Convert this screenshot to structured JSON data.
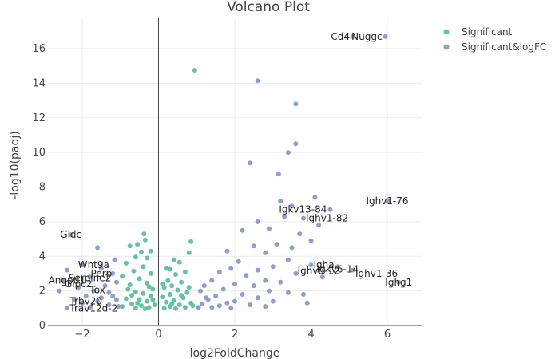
{
  "chart_data": {
    "type": "scatter",
    "title": "Volcano Plot",
    "xlabel": "log2FoldChange",
    "ylabel": "-log10(padj)",
    "xlim": [
      -2.9,
      6.9
    ],
    "ylim": [
      0,
      17.8
    ],
    "xticks": [
      -2,
      0,
      2,
      4,
      6
    ],
    "yticks": [
      0,
      2,
      4,
      6,
      8,
      10,
      12,
      14,
      16
    ],
    "grid": true,
    "legend_position": "top-right",
    "colors": {
      "Significant": "#66c2a5",
      "Significant&logFC": "#8da0cb"
    },
    "series": [
      {
        "name": "Significant",
        "color": "#66c2a5",
        "points": [
          [
            0.95,
            14.75
          ],
          [
            -0.38,
            5.3
          ],
          [
            -0.35,
            4.95
          ],
          [
            -0.55,
            4.7
          ],
          [
            0.85,
            4.85
          ],
          [
            -0.75,
            4.6
          ],
          [
            -0.45,
            4.25
          ],
          [
            -0.2,
            4.3
          ],
          [
            0.8,
            4.2
          ],
          [
            -0.6,
            3.95
          ],
          [
            0.4,
            3.8
          ],
          [
            -0.3,
            3.9
          ],
          [
            0.55,
            3.65
          ],
          [
            -0.85,
            3.6
          ],
          [
            -0.4,
            3.4
          ],
          [
            0.3,
            3.25
          ],
          [
            0.7,
            3.1
          ],
          [
            -0.65,
            3.15
          ],
          [
            -0.2,
            3.0
          ],
          [
            0.45,
            2.95
          ],
          [
            -0.95,
            2.85
          ],
          [
            0.25,
            2.6
          ],
          [
            -0.5,
            2.7
          ],
          [
            0.6,
            2.5
          ],
          [
            -0.3,
            2.45
          ],
          [
            0.35,
            2.3
          ],
          [
            -0.75,
            2.35
          ],
          [
            0.15,
            2.2
          ],
          [
            -0.15,
            2.1
          ],
          [
            0.5,
            2.05
          ],
          [
            -0.6,
            1.95
          ],
          [
            0.75,
            1.9
          ],
          [
            -0.4,
            1.85
          ],
          [
            0.3,
            1.8
          ],
          [
            -0.2,
            1.7
          ],
          [
            0.1,
            1.65
          ],
          [
            0.65,
            1.6
          ],
          [
            -0.85,
            1.55
          ],
          [
            -0.5,
            1.5
          ],
          [
            0.4,
            1.45
          ],
          [
            -0.3,
            1.4
          ],
          [
            0.2,
            1.35
          ],
          [
            0.85,
            1.3
          ],
          [
            -0.7,
            1.25
          ],
          [
            -0.1,
            1.2
          ],
          [
            0.55,
            1.2
          ],
          [
            -0.45,
            1.15
          ],
          [
            0.3,
            1.1
          ],
          [
            -0.95,
            1.1
          ],
          [
            0.7,
            1.05
          ],
          [
            -0.25,
            1.05
          ],
          [
            0.15,
            1.0
          ],
          [
            -0.6,
            1.0
          ],
          [
            0.45,
            0.98
          ],
          [
            -0.35,
            0.97
          ],
          [
            0.9,
            1.15
          ],
          [
            -0.15,
            1.5
          ],
          [
            0.1,
            2.4
          ],
          [
            -0.8,
            2.1
          ],
          [
            0.8,
            2.2
          ],
          [
            -0.55,
            1.3
          ],
          [
            0.6,
            1.75
          ],
          [
            -0.25,
            2.25
          ],
          [
            0.35,
            1.25
          ],
          [
            -0.7,
            1.75
          ],
          [
            0.2,
            3.3
          ]
        ]
      },
      {
        "name": "Significant&logFC",
        "color": "#8da0cb",
        "points": [
          [
            5.1,
            16.7
          ],
          [
            5.95,
            16.7
          ],
          [
            2.6,
            14.15
          ],
          [
            3.6,
            12.8
          ],
          [
            3.6,
            10.5
          ],
          [
            3.4,
            10.0
          ],
          [
            2.4,
            9.4
          ],
          [
            3.15,
            8.75
          ],
          [
            4.1,
            7.4
          ],
          [
            6.0,
            7.2
          ],
          [
            3.2,
            7.2
          ],
          [
            3.5,
            6.9
          ],
          [
            4.5,
            6.7
          ],
          [
            3.8,
            6.2
          ],
          [
            2.6,
            6.0
          ],
          [
            3.3,
            6.3
          ],
          [
            4.2,
            5.8
          ],
          [
            2.9,
            5.6
          ],
          [
            3.7,
            5.3
          ],
          [
            2.2,
            5.5
          ],
          [
            4.0,
            4.9
          ],
          [
            3.1,
            4.7
          ],
          [
            2.5,
            4.6
          ],
          [
            3.5,
            4.5
          ],
          [
            1.8,
            4.3
          ],
          [
            2.8,
            4.2
          ],
          [
            4.0,
            3.5
          ],
          [
            4.7,
            3.4
          ],
          [
            5.1,
            3.2
          ],
          [
            3.4,
            3.8
          ],
          [
            2.1,
            3.7
          ],
          [
            3.0,
            3.4
          ],
          [
            2.6,
            3.2
          ],
          [
            1.9,
            3.3
          ],
          [
            3.6,
            3.0
          ],
          [
            2.3,
            2.9
          ],
          [
            1.6,
            3.1
          ],
          [
            4.3,
            2.8
          ],
          [
            6.3,
            2.5
          ],
          [
            2.8,
            2.6
          ],
          [
            3.2,
            2.5
          ],
          [
            1.4,
            2.6
          ],
          [
            2.0,
            2.4
          ],
          [
            2.5,
            2.3
          ],
          [
            1.2,
            2.3
          ],
          [
            3.8,
            1.8
          ],
          [
            1.7,
            2.1
          ],
          [
            2.9,
            2.0
          ],
          [
            3.4,
            1.9
          ],
          [
            1.1,
            2.0
          ],
          [
            2.2,
            1.8
          ],
          [
            1.5,
            1.7
          ],
          [
            2.6,
            1.6
          ],
          [
            3.9,
            1.3
          ],
          [
            1.3,
            1.5
          ],
          [
            2.0,
            1.4
          ],
          [
            1.8,
            1.3
          ],
          [
            1.15,
            1.25
          ],
          [
            1.6,
            1.15
          ],
          [
            2.4,
            1.2
          ],
          [
            3.0,
            1.4
          ],
          [
            1.05,
            1.05
          ],
          [
            1.4,
            1.05
          ],
          [
            2.8,
            1.1
          ],
          [
            1.9,
            1.0
          ],
          [
            1.25,
            1.6
          ],
          [
            -2.3,
            5.25
          ],
          [
            -1.6,
            4.5
          ],
          [
            -1.15,
            3.8
          ],
          [
            -2.0,
            3.5
          ],
          [
            -1.5,
            3.3
          ],
          [
            -2.4,
            3.2
          ],
          [
            -1.2,
            3.0
          ],
          [
            -1.8,
            2.8
          ],
          [
            -2.5,
            2.6
          ],
          [
            -1.1,
            2.5
          ],
          [
            -1.4,
            2.3
          ],
          [
            -2.1,
            2.2
          ],
          [
            -1.7,
            2.0
          ],
          [
            -2.6,
            2.0
          ],
          [
            -1.3,
            1.9
          ],
          [
            -1.9,
            1.7
          ],
          [
            -1.5,
            1.6
          ],
          [
            -2.2,
            1.5
          ],
          [
            -1.1,
            1.5
          ],
          [
            -1.6,
            1.4
          ],
          [
            -2.0,
            1.3
          ],
          [
            -1.3,
            1.2
          ],
          [
            -2.4,
            1.0
          ],
          [
            -1.8,
            1.05
          ],
          [
            -1.05,
            1.1
          ],
          [
            -1.2,
            1.7
          ]
        ]
      }
    ],
    "annotations": [
      {
        "text": "Cd4",
        "x": 5.1,
        "y": 16.7,
        "pos": "left"
      },
      {
        "text": "Nuggc",
        "x": 5.95,
        "y": 16.7,
        "pos": "left"
      },
      {
        "text": "Ighv1-76",
        "x": 6.0,
        "y": 7.2,
        "pos": "center"
      },
      {
        "text": "Igkv13-84",
        "x": 4.5,
        "y": 6.7,
        "pos": "left"
      },
      {
        "text": "Ighv1-82",
        "x": 3.8,
        "y": 6.2,
        "pos": "right"
      },
      {
        "text": "Igha",
        "x": 4.0,
        "y": 3.5,
        "pos": "right"
      },
      {
        "text": "Ighv8-12",
        "x": 4.2,
        "y": 3.15,
        "pos": "center"
      },
      {
        "text": "Igkv6-14",
        "x": 4.7,
        "y": 3.25,
        "pos": "center"
      },
      {
        "text": "Ighv1-36",
        "x": 5.1,
        "y": 3.0,
        "pos": "right"
      },
      {
        "text": "Ighg1",
        "x": 6.3,
        "y": 2.5,
        "pos": "center"
      },
      {
        "text": "Gldc",
        "x": -2.3,
        "y": 5.25,
        "pos": "center"
      },
      {
        "text": "Wnt9a",
        "x": -1.7,
        "y": 3.5,
        "pos": "center"
      },
      {
        "text": "Perp",
        "x": -1.5,
        "y": 3.0,
        "pos": "center"
      },
      {
        "text": "Serpine2",
        "x": -1.8,
        "y": 2.75,
        "pos": "center"
      },
      {
        "text": "Angptl1",
        "x": -2.4,
        "y": 2.6,
        "pos": "center"
      },
      {
        "text": "Gipc2",
        "x": -2.1,
        "y": 2.4,
        "pos": "center"
      },
      {
        "text": "Tox",
        "x": -1.6,
        "y": 2.05,
        "pos": "center"
      },
      {
        "text": "Trbv20",
        "x": -1.9,
        "y": 1.4,
        "pos": "center"
      },
      {
        "text": "Trav12d-2",
        "x": -1.7,
        "y": 1.0,
        "pos": "center"
      }
    ]
  }
}
